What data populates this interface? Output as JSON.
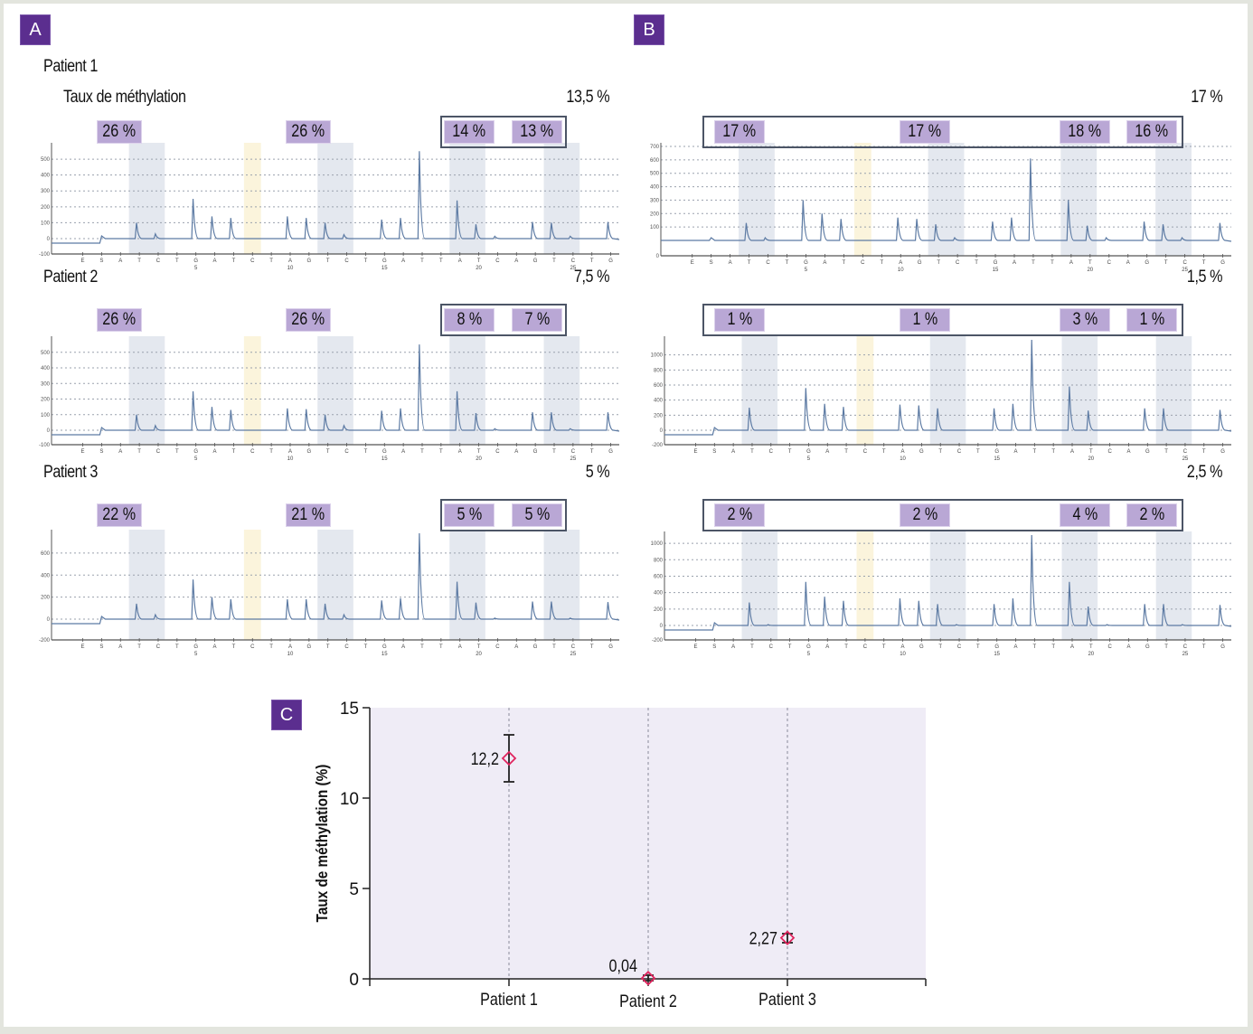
{
  "panels": {
    "A": "A",
    "B": "B",
    "C": "C"
  },
  "header": {
    "patient1_label": "Patient 1",
    "methylation_label": "Taux de méthylation"
  },
  "dispensation_order": [
    "E",
    "S",
    "A",
    "T",
    "C",
    "T",
    "G",
    "A",
    "T",
    "C",
    "T",
    "A",
    "G",
    "T",
    "C",
    "T",
    "G",
    "A",
    "T",
    "T",
    "A",
    "T",
    "C",
    "A",
    "G",
    "T",
    "C",
    "T",
    "G"
  ],
  "position_ticks": [
    {
      "label": "5",
      "index": 6
    },
    {
      "label": "10",
      "index": 11
    },
    {
      "label": "15",
      "index": 16
    },
    {
      "label": "20",
      "index": 21
    },
    {
      "label": "25",
      "index": 26
    }
  ],
  "colors": {
    "badge": "#5b2e8f",
    "pct_fill": "#b9a7d5",
    "cpg_shade": "#e4e8ef",
    "control_shade": "#fbf4dc",
    "trace": "#5c7aa3",
    "plot_bg": "#efecf6",
    "marker": "#e0245e"
  },
  "pyrograms": [
    {
      "panel": "A",
      "patient": "Patient 1",
      "overall": "13,5 %",
      "cpg": [
        "26 %",
        "26 %",
        "14 %",
        "13 %"
      ],
      "yticks": [
        -100,
        0,
        100,
        200,
        300,
        400,
        500
      ],
      "ymax": 580,
      "peaks": [
        0,
        0,
        0,
        100,
        30,
        0,
        250,
        140,
        130,
        0,
        0,
        140,
        130,
        100,
        25,
        0,
        120,
        130,
        550,
        0,
        240,
        90,
        15,
        0,
        105,
        100,
        15,
        0,
        105
      ]
    },
    {
      "panel": "A",
      "patient": "Patient 2",
      "overall": "7,5 %",
      "cpg": [
        "26 %",
        "26 %",
        "8 %",
        "7 %"
      ],
      "yticks": [
        -100,
        0,
        100,
        200,
        300,
        400,
        500
      ],
      "ymax": 580,
      "peaks": [
        0,
        0,
        0,
        100,
        30,
        0,
        250,
        150,
        130,
        0,
        0,
        140,
        135,
        100,
        30,
        0,
        125,
        140,
        550,
        0,
        250,
        110,
        10,
        0,
        115,
        115,
        10,
        0,
        115
      ]
    },
    {
      "panel": "A",
      "patient": "Patient 3",
      "overall": "5 %",
      "cpg": [
        "22 %",
        "21 %",
        "5 %",
        "5 %"
      ],
      "yticks": [
        -200,
        0,
        200,
        400,
        600
      ],
      "ymax": 780,
      "peaks": [
        0,
        0,
        0,
        140,
        40,
        0,
        360,
        200,
        180,
        0,
        0,
        180,
        180,
        140,
        40,
        0,
        170,
        190,
        780,
        0,
        340,
        150,
        10,
        0,
        160,
        160,
        10,
        0,
        155
      ]
    },
    {
      "panel": "B",
      "patient": "",
      "overall": "17 %",
      "cpg": [
        "17 %",
        "17 %",
        "18 %",
        "16 %"
      ],
      "yticks": [
        0,
        100,
        200,
        300,
        400,
        500,
        600,
        700
      ],
      "ymax": 700,
      "peaks": [
        0,
        0,
        0,
        130,
        20,
        0,
        300,
        200,
        160,
        0,
        0,
        170,
        160,
        120,
        20,
        0,
        140,
        170,
        610,
        0,
        300,
        110,
        20,
        0,
        140,
        120,
        20,
        0,
        130
      ]
    },
    {
      "panel": "B",
      "patient": "",
      "overall": "1,5 %",
      "cpg": [
        "1 %",
        "1 %",
        "3 %",
        "1 %"
      ],
      "yticks": [
        -200,
        0,
        200,
        400,
        600,
        800,
        1000
      ],
      "ymax": 1200,
      "peaks": [
        0,
        0,
        0,
        300,
        0,
        0,
        560,
        350,
        310,
        0,
        0,
        340,
        330,
        290,
        0,
        0,
        290,
        350,
        1200,
        0,
        580,
        260,
        0,
        0,
        290,
        290,
        0,
        0,
        270
      ]
    },
    {
      "panel": "B",
      "patient": "",
      "overall": "2,5 %",
      "cpg": [
        "2 %",
        "2 %",
        "4 %",
        "2 %"
      ],
      "yticks": [
        -200,
        0,
        200,
        400,
        600,
        800,
        1000
      ],
      "ymax": 1100,
      "peaks": [
        0,
        0,
        0,
        280,
        10,
        0,
        530,
        350,
        300,
        0,
        0,
        330,
        300,
        260,
        10,
        0,
        260,
        330,
        1100,
        0,
        530,
        230,
        10,
        0,
        260,
        260,
        10,
        0,
        250
      ]
    }
  ],
  "chart_data": {
    "type": "scatter",
    "title": "",
    "xlabel": "",
    "ylabel": "Taux de méthylation (%)",
    "categories": [
      "Patient 1",
      "Patient 2",
      "Patient 3"
    ],
    "values": [
      12.2,
      0.04,
      2.27
    ],
    "value_labels": [
      "12,2",
      "0,04",
      "2,27"
    ],
    "error_low": [
      10.9,
      -0.1,
      2.0
    ],
    "error_high": [
      13.5,
      0.2,
      2.5
    ],
    "ylim": [
      0,
      15
    ],
    "yticks": [
      0,
      5,
      10,
      15
    ],
    "grid": "vertical dotted at categories",
    "marker": "diamond-open"
  }
}
